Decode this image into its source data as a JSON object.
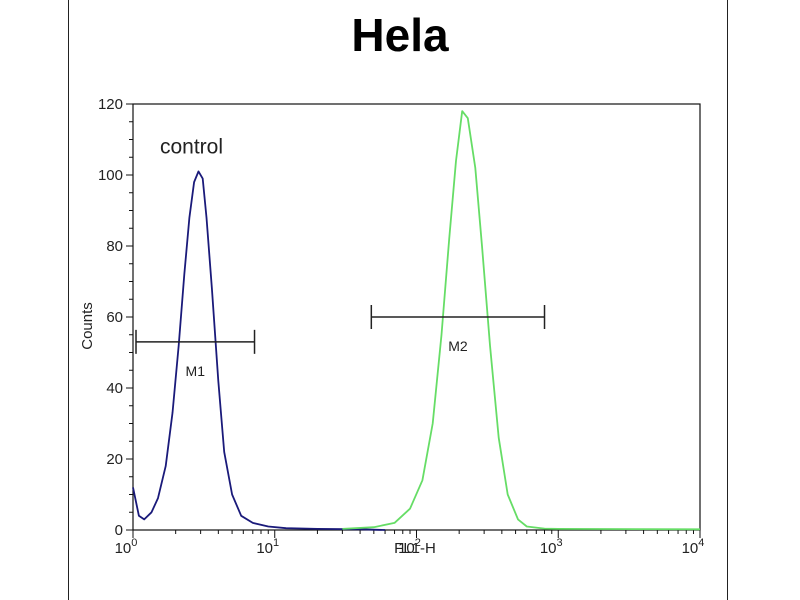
{
  "chart_data": {
    "type": "line",
    "title": "Hela",
    "xlabel": "FL1-H",
    "ylabel": "Counts",
    "x_scale": "log",
    "xlim": [
      1,
      10000
    ],
    "ylim": [
      0,
      120
    ],
    "x_ticks": [
      {
        "value": 1,
        "base": "10",
        "exp": "0"
      },
      {
        "value": 10,
        "base": "10",
        "exp": "1"
      },
      {
        "value": 100,
        "base": "10",
        "exp": "2"
      },
      {
        "value": 1000,
        "base": "10",
        "exp": "3"
      },
      {
        "value": 10000,
        "base": "10",
        "exp": "4"
      }
    ],
    "y_ticks": [
      0,
      20,
      40,
      60,
      80,
      100,
      120
    ],
    "grid": false,
    "series": [
      {
        "color": "#1a1a7a",
        "x": [
          1.0,
          1.1,
          1.2,
          1.35,
          1.5,
          1.7,
          1.9,
          2.1,
          2.3,
          2.5,
          2.7,
          2.9,
          3.1,
          3.3,
          3.6,
          4.0,
          4.4,
          5.0,
          5.8,
          7.0,
          9.0,
          12,
          20,
          40,
          60
        ],
        "y": [
          12,
          4,
          3,
          5,
          9,
          18,
          33,
          52,
          72,
          88,
          98,
          101,
          99,
          88,
          68,
          42,
          22,
          10,
          4,
          2,
          1,
          0.5,
          0.3,
          0.2,
          0
        ]
      },
      {
        "color": "#66dd66",
        "x": [
          30,
          50,
          70,
          90,
          110,
          130,
          150,
          170,
          190,
          210,
          230,
          260,
          290,
          330,
          380,
          440,
          520,
          600,
          800,
          1000,
          10000
        ],
        "y": [
          0.3,
          0.8,
          2,
          6,
          14,
          30,
          55,
          82,
          104,
          118,
          116,
          102,
          80,
          52,
          26,
          10,
          3,
          1,
          0.4,
          0.3,
          0.2
        ]
      }
    ],
    "markers": [
      {
        "label": "M1",
        "x_start": 1.05,
        "x_end": 7.2,
        "y": 53
      },
      {
        "label": "M2",
        "x_start": 48,
        "x_end": 800,
        "y": 60
      }
    ],
    "annotations": [
      {
        "text": "control",
        "x": 1.55,
        "y": 106
      }
    ]
  }
}
